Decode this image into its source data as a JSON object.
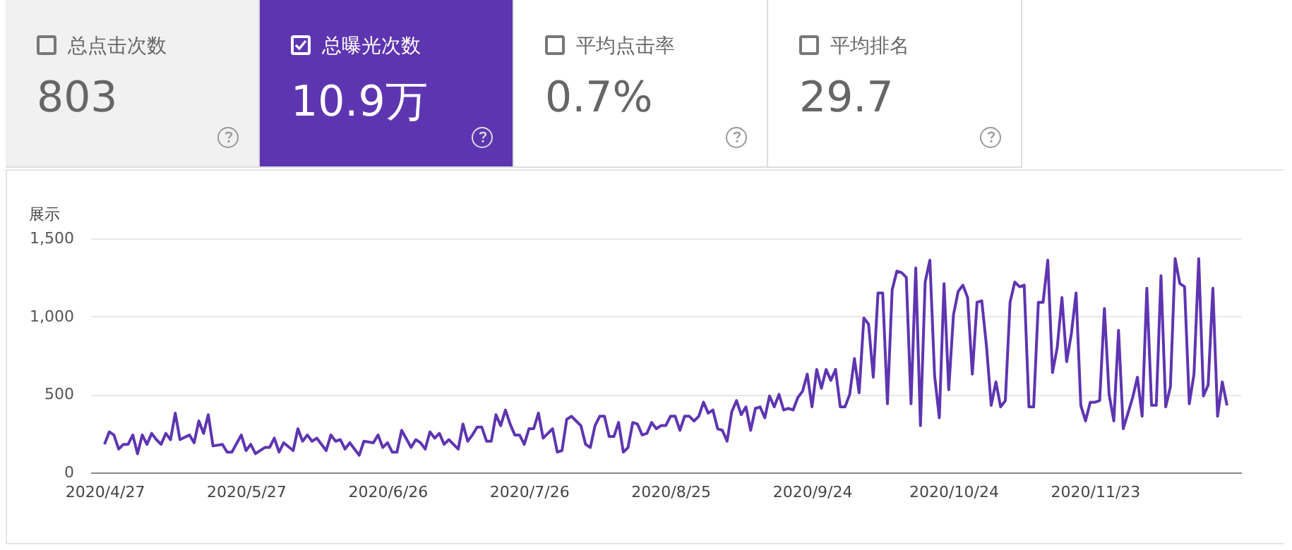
{
  "chart_data": [
    {
      "type": "other",
      "annotations": [
        "总点击次数",
        "803",
        "总曝光次数",
        "10.9万",
        "平均点击率",
        "0.7%",
        "平均排名",
        "29.7"
      ]
    },
    {
      "type": "line",
      "ylabel": "展示",
      "grid": "y",
      "legend": false,
      "marker": "none",
      "line_style": "solid",
      "xlim": [
        "2020-04-24",
        "2020-12-24"
      ],
      "ylim": [
        0,
        1500
      ],
      "xticks": [
        {
          "value": "2020-04-27",
          "label": "2020/4/27"
        },
        {
          "value": "2020-05-27",
          "label": "2020/5/27"
        },
        {
          "value": "2020-06-26",
          "label": "2020/6/26"
        },
        {
          "value": "2020-07-26",
          "label": "2020/7/26"
        },
        {
          "value": "2020-08-25",
          "label": "2020/8/25"
        },
        {
          "value": "2020-09-24",
          "label": "2020/9/24"
        },
        {
          "value": "2020-10-24",
          "label": "2020/10/24"
        },
        {
          "value": "2020-11-23",
          "label": "2020/11/23"
        }
      ],
      "yticks": [
        0,
        500,
        {
          "value": 1000,
          "label": "1,000"
        },
        {
          "value": 1500,
          "label": "1,500"
        }
      ],
      "x": [
        "2020-04-27",
        "2020-04-28",
        "2020-04-29",
        "2020-04-30",
        "2020-05-01",
        "2020-05-02",
        "2020-05-03",
        "2020-05-04",
        "2020-05-05",
        "2020-05-06",
        "2020-05-07",
        "2020-05-08",
        "2020-05-09",
        "2020-05-10",
        "2020-05-11",
        "2020-05-12",
        "2020-05-13",
        "2020-05-15",
        "2020-05-16",
        "2020-05-17",
        "2020-05-18",
        "2020-05-19",
        "2020-05-20",
        "2020-05-22",
        "2020-05-23",
        "2020-05-24",
        "2020-05-26",
        "2020-05-27",
        "2020-05-28",
        "2020-05-29",
        "2020-05-31",
        "2020-06-01",
        "2020-06-02",
        "2020-06-03",
        "2020-06-04",
        "2020-06-06",
        "2020-06-07",
        "2020-06-08",
        "2020-06-09",
        "2020-06-10",
        "2020-06-11",
        "2020-06-13",
        "2020-06-14",
        "2020-06-15",
        "2020-06-16",
        "2020-06-17",
        "2020-06-18",
        "2020-06-20",
        "2020-06-21",
        "2020-06-23",
        "2020-06-24",
        "2020-06-25",
        "2020-06-26",
        "2020-06-27",
        "2020-06-28",
        "2020-06-29",
        "2020-07-01",
        "2020-07-02",
        "2020-07-03",
        "2020-07-04",
        "2020-07-05",
        "2020-07-06",
        "2020-07-07",
        "2020-07-08",
        "2020-07-09",
        "2020-07-11",
        "2020-07-12",
        "2020-07-13",
        "2020-07-14",
        "2020-07-15",
        "2020-07-16",
        "2020-07-17",
        "2020-07-18",
        "2020-07-19",
        "2020-07-20",
        "2020-07-21",
        "2020-07-22",
        "2020-07-23",
        "2020-07-24",
        "2020-07-25",
        "2020-07-26",
        "2020-07-27",
        "2020-07-28",
        "2020-07-29",
        "2020-07-31",
        "2020-08-01",
        "2020-08-02",
        "2020-08-03",
        "2020-08-04",
        "2020-08-05",
        "2020-08-06",
        "2020-08-07",
        "2020-08-08",
        "2020-08-09",
        "2020-08-10",
        "2020-08-11",
        "2020-08-12",
        "2020-08-13",
        "2020-08-14",
        "2020-08-15",
        "2020-08-16",
        "2020-08-17",
        "2020-08-18",
        "2020-08-19",
        "2020-08-20",
        "2020-08-21",
        "2020-08-22",
        "2020-08-23",
        "2020-08-24",
        "2020-08-25",
        "2020-08-26",
        "2020-08-27",
        "2020-08-28",
        "2020-08-29",
        "2020-08-30",
        "2020-08-31",
        "2020-09-01",
        "2020-09-02",
        "2020-09-03",
        "2020-09-04",
        "2020-09-05",
        "2020-09-06",
        "2020-09-07",
        "2020-09-08",
        "2020-09-09",
        "2020-09-10",
        "2020-09-11",
        "2020-09-12",
        "2020-09-13",
        "2020-09-14",
        "2020-09-15",
        "2020-09-16",
        "2020-09-17",
        "2020-09-18",
        "2020-09-19",
        "2020-09-20",
        "2020-09-21",
        "2020-09-22",
        "2020-09-23",
        "2020-09-24",
        "2020-09-25",
        "2020-09-26",
        "2020-09-27",
        "2020-09-28",
        "2020-09-29",
        "2020-09-30",
        "2020-10-01",
        "2020-10-02",
        "2020-10-03",
        "2020-10-04",
        "2020-10-05",
        "2020-10-06",
        "2020-10-07",
        "2020-10-08",
        "2020-10-09",
        "2020-10-10",
        "2020-10-11",
        "2020-10-12",
        "2020-10-13",
        "2020-10-14",
        "2020-10-15",
        "2020-10-16",
        "2020-10-17",
        "2020-10-18",
        "2020-10-19",
        "2020-10-20",
        "2020-10-21",
        "2020-10-22",
        "2020-10-23",
        "2020-10-24",
        "2020-10-25",
        "2020-10-26",
        "2020-10-27",
        "2020-10-28",
        "2020-10-29",
        "2020-10-30",
        "2020-10-31",
        "2020-11-01",
        "2020-11-02",
        "2020-11-03",
        "2020-11-04",
        "2020-11-05",
        "2020-11-06",
        "2020-11-07",
        "2020-11-08",
        "2020-11-09",
        "2020-11-10",
        "2020-11-11",
        "2020-11-12",
        "2020-11-13",
        "2020-11-14",
        "2020-11-15",
        "2020-11-16",
        "2020-11-17",
        "2020-11-18",
        "2020-11-19",
        "2020-11-20",
        "2020-11-21",
        "2020-11-22",
        "2020-11-23",
        "2020-11-24",
        "2020-11-25",
        "2020-11-26",
        "2020-11-27",
        "2020-11-28",
        "2020-11-29",
        "2020-11-30",
        "2020-12-01",
        "2020-12-02",
        "2020-12-03",
        "2020-12-04",
        "2020-12-05",
        "2020-12-06",
        "2020-12-07",
        "2020-12-08",
        "2020-12-09",
        "2020-12-10",
        "2020-12-11",
        "2020-12-12",
        "2020-12-13",
        "2020-12-14",
        "2020-12-15",
        "2020-12-16",
        "2020-12-17",
        "2020-12-18",
        "2020-12-19",
        "2020-12-20",
        "2020-12-21"
      ],
      "series": [
        {
          "color": "#5e35b1",
          "values": [
            180,
            260,
            240,
            150,
            180,
            180,
            240,
            120,
            240,
            180,
            250,
            210,
            180,
            250,
            210,
            380,
            210,
            240,
            190,
            330,
            250,
            370,
            170,
            180,
            130,
            130,
            240,
            140,
            180,
            120,
            160,
            160,
            220,
            130,
            190,
            140,
            280,
            200,
            240,
            200,
            220,
            140,
            240,
            200,
            210,
            150,
            190,
            110,
            200,
            190,
            240,
            160,
            190,
            130,
            130,
            270,
            160,
            210,
            190,
            150,
            260,
            220,
            250,
            180,
            210,
            150,
            310,
            200,
            240,
            290,
            290,
            200,
            200,
            370,
            300,
            400,
            310,
            240,
            240,
            180,
            280,
            280,
            380,
            220,
            280,
            130,
            140,
            340,
            360,
            330,
            300,
            180,
            160,
            300,
            360,
            360,
            230,
            230,
            320,
            130,
            160,
            320,
            310,
            240,
            250,
            320,
            280,
            300,
            300,
            360,
            360,
            270,
            360,
            360,
            330,
            360,
            450,
            380,
            400,
            280,
            270,
            200,
            390,
            460,
            370,
            420,
            270,
            410,
            420,
            350,
            490,
            420,
            500,
            400,
            410,
            400,
            480,
            520,
            630,
            420,
            660,
            540,
            660,
            590,
            660,
            420,
            420,
            500,
            730,
            510,
            990,
            950,
            610,
            1150,
            1150,
            440,
            1170,
            1290,
            1280,
            1250,
            440,
            1310,
            300,
            1220,
            1360,
            620,
            350,
            1210,
            530,
            1010,
            1160,
            1200,
            1120,
            630,
            1090,
            1100,
            810,
            430,
            580,
            420,
            460,
            1090,
            1220,
            1190,
            1200,
            420,
            420,
            1090,
            1090,
            1360,
            640,
            800,
            1120,
            710,
            890,
            1150,
            430,
            330,
            450,
            450,
            460,
            1050,
            500,
            330,
            910,
            280,
            380,
            480,
            610,
            360,
            1180,
            430,
            430,
            1260,
            420,
            550,
            1370,
            1210,
            1190,
            440,
            630,
            1370,
            490,
            560,
            1180,
            360,
            580,
            430
          ]
        }
      ]
    }
  ]
}
